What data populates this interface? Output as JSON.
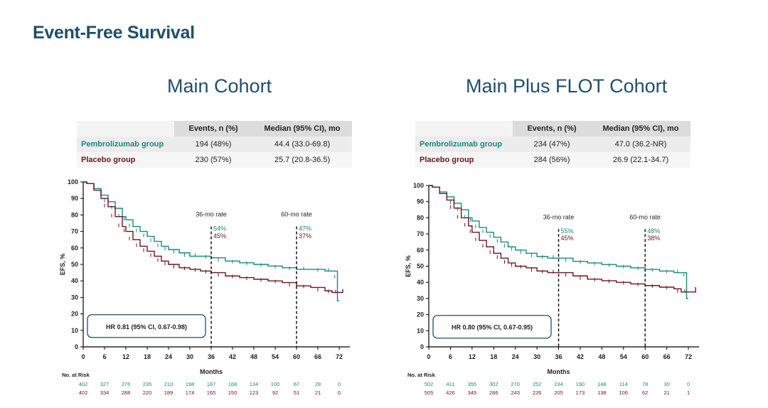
{
  "page": {
    "title": "Event-Free Survival"
  },
  "colors": {
    "pembro": "#1a8a78",
    "placebo": "#6e1420",
    "title": "#1f4e6b"
  },
  "panels": [
    {
      "title": "Main Cohort",
      "table": {
        "headers": [
          "",
          "Events, n (%)",
          "Median (95% CI), mo"
        ],
        "rows": [
          {
            "group": "Pembrolizumab group",
            "events": "194 (48%)",
            "median": "44.4 (33.0-69.8)"
          },
          {
            "group": "Placebo group",
            "events": "230 (57%)",
            "median": "25.7 (20.8-36.5)"
          }
        ]
      },
      "hr_text": "HR 0.81 (95% CI, 0.67-0.98)",
      "at_risk": {
        "label": "No. at Risk",
        "pembro": [
          "402",
          "327",
          "276",
          "235",
          "210",
          "198",
          "187",
          "168",
          "134",
          "100",
          "67",
          "28",
          "0"
        ],
        "placebo": [
          "402",
          "334",
          "288",
          "220",
          "189",
          "174",
          "165",
          "150",
          "123",
          "92",
          "51",
          "21",
          "0"
        ]
      },
      "chart_data": {
        "type": "line",
        "xlabel": "Months",
        "ylabel": "EFS, %",
        "xlim": [
          0,
          75
        ],
        "ylim": [
          0,
          100
        ],
        "xticks": [
          0,
          6,
          12,
          18,
          24,
          30,
          36,
          42,
          48,
          54,
          60,
          66,
          72
        ],
        "yticks": [
          0,
          10,
          20,
          30,
          40,
          50,
          60,
          70,
          80,
          90,
          100
        ],
        "series": [
          {
            "name": "Pembrolizumab group",
            "x": [
              0,
              1,
              3,
              5,
              7,
              9,
              11,
              12,
              14,
              16,
              18,
              20,
              22,
              24,
              27,
              30,
              33,
              36,
              40,
              44,
              48,
              52,
              56,
              60,
              64,
              68,
              70,
              71.5,
              71.5,
              72
            ],
            "y": [
              100,
              99,
              96,
              92,
              88,
              84,
              79,
              77,
              73,
              70,
              67,
              64,
              61,
              59,
              57,
              55,
              55,
              54,
              52,
              51,
              50,
              49,
              48,
              47,
              47,
              46,
              46,
              42,
              28,
              28
            ]
          },
          {
            "name": "Placebo group",
            "x": [
              0,
              1,
              3,
              5,
              7,
              9,
              11,
              12,
              14,
              16,
              18,
              20,
              22,
              24,
              27,
              30,
              33,
              36,
              40,
              44,
              48,
              52,
              56,
              60,
              64,
              68,
              70,
              72,
              73
            ],
            "y": [
              100,
              99,
              95,
              90,
              85,
              79,
              73,
              70,
              65,
              61,
              58,
              55,
              52,
              50,
              48,
              47,
              46,
              45,
              43,
              42,
              41,
              40,
              39,
              37,
              36,
              34,
              33,
              33,
              35
            ]
          }
        ],
        "landmarks": [
          {
            "x": 36,
            "label": "36-mo rate",
            "pembro": "54%",
            "placebo": "45%"
          },
          {
            "x": 60,
            "label": "60-mo rate",
            "pembro": "47%",
            "placebo": "37%"
          }
        ]
      }
    },
    {
      "title": "Main Plus FLOT Cohort",
      "table": {
        "headers": [
          "",
          "Events, n (%)",
          "Median (95% CI), mo"
        ],
        "rows": [
          {
            "group": "Pembrolizumab group",
            "events": "234 (47%)",
            "median": "47.0 (36.2-NR)"
          },
          {
            "group": "Placebo group",
            "events": "284 (56%)",
            "median": "26.9 (22.1-34.7)"
          }
        ]
      },
      "hr_text": "HR 0.80 (95% CI, 0.67-0.95)",
      "at_risk": {
        "label": "No. at Risk",
        "pembro": [
          "502",
          "411",
          "355",
          "302",
          "270",
          "252",
          "234",
          "190",
          "148",
          "114",
          "78",
          "30",
          "0"
        ],
        "placebo": [
          "505",
          "426",
          "349",
          "286",
          "243",
          "226",
          "205",
          "173",
          "138",
          "106",
          "62",
          "21",
          "1"
        ]
      },
      "chart_data": {
        "type": "line",
        "xlabel": "Months",
        "ylabel": "EFS, %",
        "xlim": [
          0,
          75
        ],
        "ylim": [
          0,
          100
        ],
        "xticks": [
          0,
          6,
          12,
          18,
          24,
          30,
          36,
          42,
          48,
          54,
          60,
          66,
          72
        ],
        "yticks": [
          0,
          10,
          20,
          30,
          40,
          50,
          60,
          70,
          80,
          90,
          100
        ],
        "series": [
          {
            "name": "Pembrolizumab group",
            "x": [
              0,
              1,
              3,
              5,
              7,
              9,
              11,
              12,
              14,
              16,
              18,
              20,
              22,
              24,
              27,
              30,
              33,
              36,
              40,
              44,
              48,
              52,
              56,
              60,
              64,
              68,
              70,
              71.5,
              71.5,
              72
            ],
            "y": [
              100,
              99,
              96,
              93,
              89,
              85,
              80,
              78,
              74,
              71,
              68,
              65,
              62,
              60,
              58,
              56,
              55,
              55,
              53,
              52,
              51,
              50,
              49,
              48,
              47,
              46,
              46,
              44,
              30,
              30
            ]
          },
          {
            "name": "Placebo group",
            "x": [
              0,
              1,
              3,
              5,
              7,
              9,
              11,
              12,
              14,
              16,
              18,
              20,
              22,
              24,
              27,
              30,
              33,
              36,
              40,
              44,
              48,
              52,
              56,
              60,
              64,
              68,
              70,
              72,
              74
            ],
            "y": [
              100,
              99,
              95,
              91,
              86,
              80,
              75,
              71,
              66,
              62,
              58,
              55,
              52,
              50,
              49,
              47,
              46,
              46,
              44,
              42,
              41,
              40,
              39,
              38,
              37,
              36,
              34,
              34,
              37
            ]
          }
        ],
        "landmarks": [
          {
            "x": 36,
            "label": "36-mo rate",
            "pembro": "55%",
            "placebo": "45%"
          },
          {
            "x": 60,
            "label": "60-mo rate",
            "pembro": "48%",
            "placebo": "38%"
          }
        ]
      }
    }
  ]
}
